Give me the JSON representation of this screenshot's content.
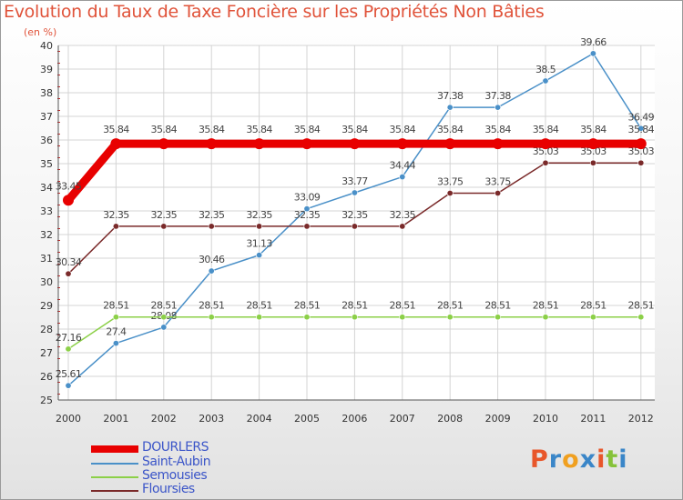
{
  "title": "Evolution du Taux de Taxe Foncière sur les Propriétés Non Bâties",
  "unit_label": "(en %)",
  "logo": {
    "letters": [
      "P",
      "r",
      "o",
      "x",
      "i",
      "t",
      "i"
    ],
    "colors": [
      "#e8562a",
      "#3a86c8",
      "#f0a020",
      "#3a86c8",
      "#e8562a",
      "#86c23a",
      "#3a86c8"
    ]
  },
  "chart_data": {
    "type": "line",
    "x": [
      "2000",
      "2001",
      "2002",
      "2003",
      "2004",
      "2005",
      "2006",
      "2007",
      "2008",
      "2009",
      "2010",
      "2011",
      "2012"
    ],
    "ylim": [
      25,
      40
    ],
    "yticks": [
      "25",
      "26",
      "27",
      "28",
      "29",
      "30",
      "31",
      "32",
      "33",
      "34",
      "35",
      "36",
      "37",
      "38",
      "39",
      "40"
    ],
    "grid": true,
    "legend_position": "bottom-left",
    "series": [
      {
        "name": "Saint-Aubin",
        "color": "#4a90c8",
        "values": [
          25.61,
          27.4,
          28.08,
          30.46,
          31.13,
          33.09,
          33.77,
          34.44,
          37.38,
          37.38,
          38.5,
          39.66,
          36.49
        ],
        "labels": [
          "25.61",
          "27.4",
          "28.08",
          "30.46",
          "31.13",
          "33.09",
          "33.77",
          "34.44",
          "37.38",
          "37.38",
          "38.5",
          "39.66",
          "36.49"
        ]
      },
      {
        "name": "Semousies",
        "color": "#8cd048",
        "values": [
          27.16,
          28.51,
          28.51,
          28.51,
          28.51,
          28.51,
          28.51,
          28.51,
          28.51,
          28.51,
          28.51,
          28.51,
          28.51
        ],
        "labels": [
          "27.16",
          "28.51",
          "28.51",
          "28.51",
          "28.51",
          "28.51",
          "28.51",
          "28.51",
          "28.51",
          "28.51",
          "28.51",
          "28.51",
          "28.51"
        ]
      },
      {
        "name": "Floursies",
        "color": "#7a2a2a",
        "values": [
          30.34,
          32.35,
          32.35,
          32.35,
          32.35,
          32.35,
          32.35,
          32.35,
          33.75,
          33.75,
          35.03,
          35.03,
          35.03
        ],
        "labels": [
          "30.34",
          "32.35",
          "32.35",
          "32.35",
          "32.35",
          "32.35",
          "32.35",
          "32.35",
          "33.75",
          "33.75",
          "35.03",
          "35.03",
          "35.03"
        ]
      },
      {
        "name": "DOURLERS",
        "color": "#e80000",
        "values": [
          33.45,
          35.84,
          35.84,
          35.84,
          35.84,
          35.84,
          35.84,
          35.84,
          35.84,
          35.84,
          35.84,
          35.84,
          35.84
        ],
        "labels": [
          "33.45",
          "35.84",
          "35.84",
          "35.84",
          "35.84",
          "35.84",
          "35.84",
          "35.84",
          "35.84",
          "35.84",
          "35.84",
          "35.84",
          "35.84"
        ]
      }
    ],
    "legend": [
      "DOURLERS",
      "Saint-Aubin",
      "Semousies",
      "Floursies"
    ]
  }
}
